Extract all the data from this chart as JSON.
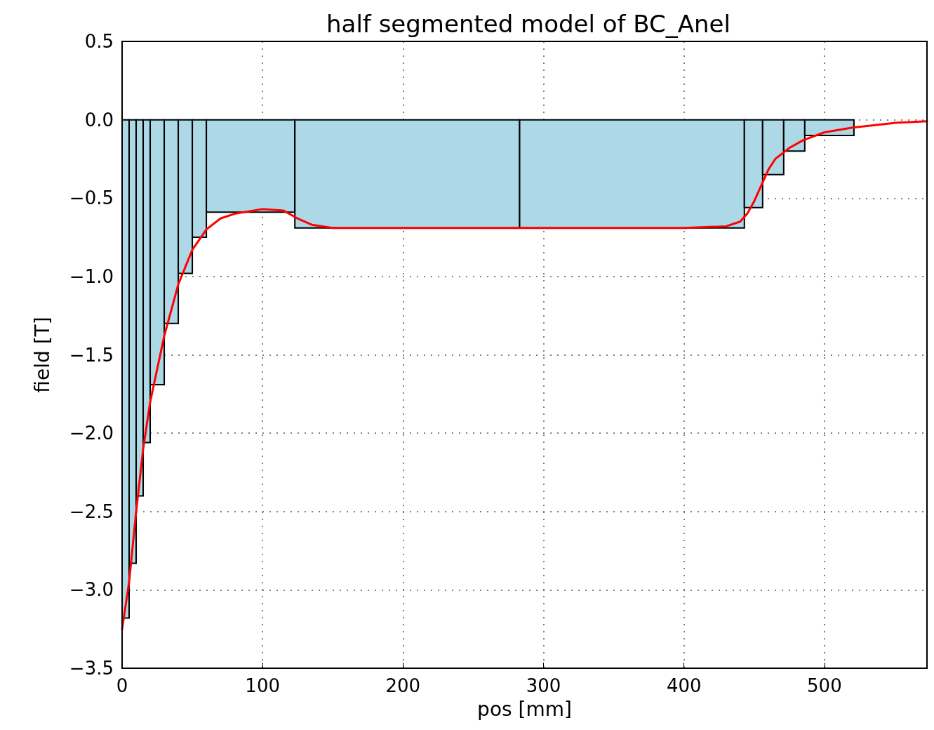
{
  "chart_data": {
    "type": "histogram",
    "title": "half segmented model of BC_Anel",
    "xlabel": "pos [mm]",
    "ylabel": "field [T]",
    "series": [
      {
        "color": "#add8e6",
        "bins": [
          0,
          5,
          10,
          15,
          20,
          30,
          40,
          50,
          60,
          123,
          283,
          443,
          456,
          471,
          486,
          521
        ],
        "values": [
          -3.18,
          -2.83,
          -2.4,
          -2.06,
          -1.69,
          -1.3,
          -0.98,
          -0.75,
          -0.59,
          -0.69,
          -0.69,
          -0.56,
          -0.35,
          -0.2,
          -0.1
        ]
      },
      {
        "type": "line",
        "color": "#ff0000",
        "x": [
          0,
          5,
          10,
          15,
          20,
          30,
          40,
          50,
          60,
          70,
          80,
          100,
          115,
          125,
          135,
          150,
          300,
          400,
          430,
          440,
          445,
          450,
          455,
          460,
          465,
          475,
          485,
          500,
          520,
          550,
          573
        ],
        "values": [
          -3.25,
          -2.95,
          -2.5,
          -2.1,
          -1.8,
          -1.38,
          -1.05,
          -0.83,
          -0.7,
          -0.63,
          -0.6,
          -0.57,
          -0.58,
          -0.63,
          -0.67,
          -0.69,
          -0.69,
          -0.69,
          -0.68,
          -0.65,
          -0.6,
          -0.52,
          -0.42,
          -0.32,
          -0.25,
          -0.18,
          -0.13,
          -0.08,
          -0.05,
          -0.02,
          -0.01
        ]
      }
    ],
    "xlim": [
      0,
      573
    ],
    "xticks": [
      0,
      100,
      200,
      300,
      400,
      500
    ],
    "ylim": [
      -3.5,
      0.5
    ],
    "yticks": [
      {
        "value": -3.5,
        "label": "−3.5"
      },
      {
        "value": -3,
        "label": "−3.0"
      },
      {
        "value": -2.5,
        "label": "−2.5"
      },
      {
        "value": -2,
        "label": "−2.0"
      },
      {
        "value": -1.5,
        "label": "−1.5"
      },
      {
        "value": -1,
        "label": "−1.0"
      },
      {
        "value": -0.5,
        "label": "−0.5"
      },
      {
        "value": 0,
        "label": "0.0"
      },
      0.5
    ],
    "grid": true,
    "marker": "none",
    "line_style": "solid"
  }
}
